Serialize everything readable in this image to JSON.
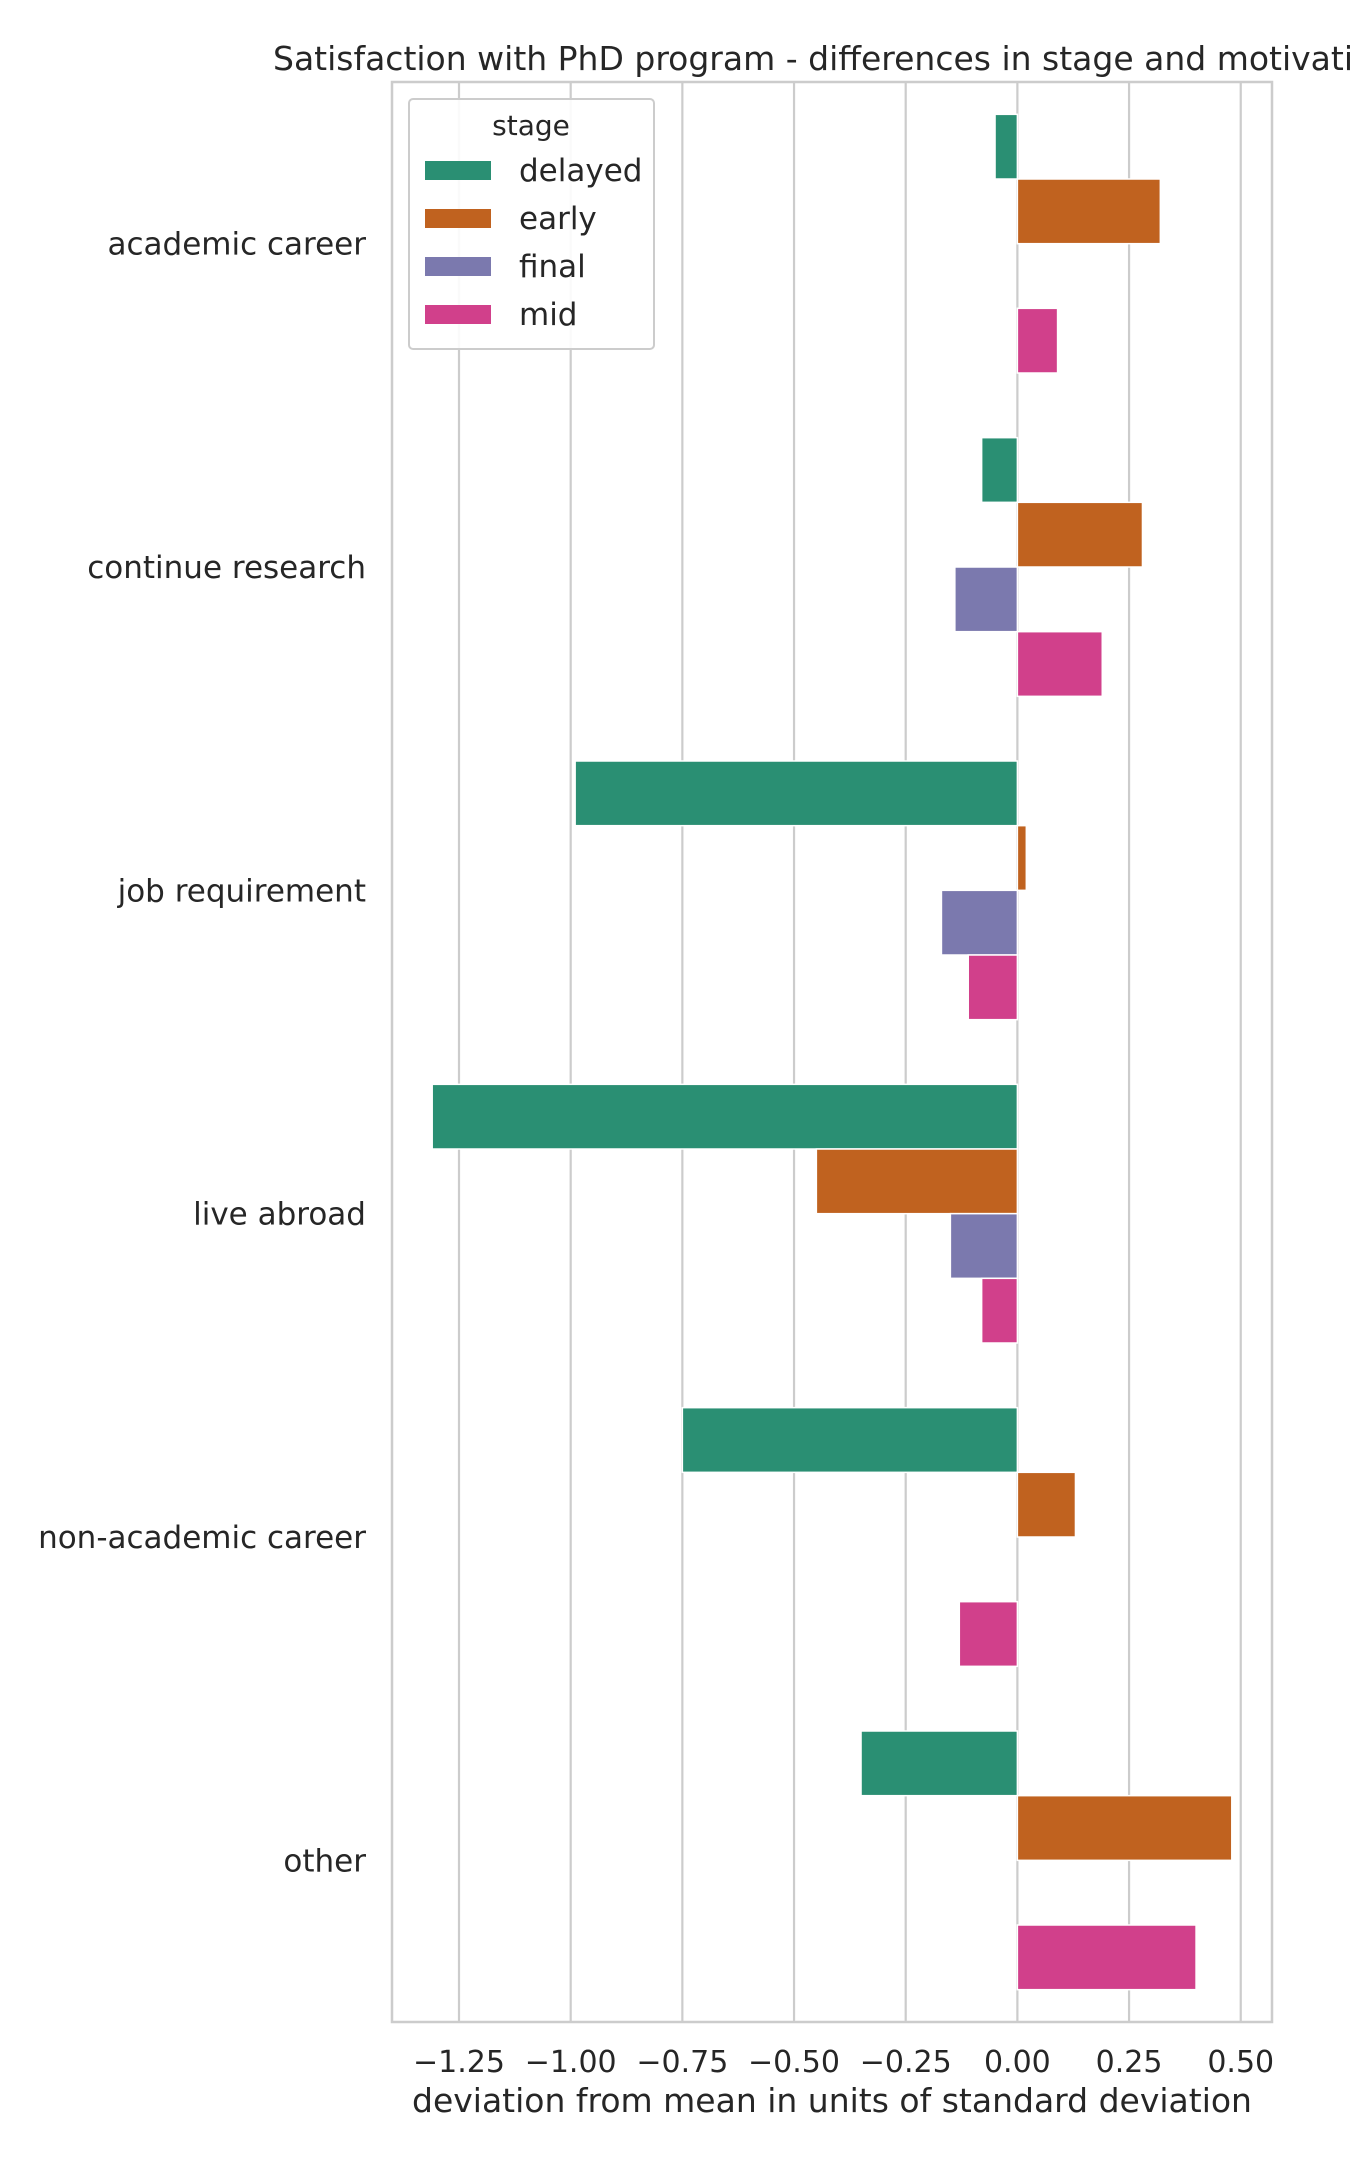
{
  "chart_data": {
    "type": "bar",
    "orientation": "horizontal",
    "title": "Satisfaction with PhD program - differences in stage and motivati",
    "xlabel": "deviation from mean in units of standard deviation",
    "ylabel": "",
    "xlim": [
      -1.4,
      0.57
    ],
    "xticks": [
      -1.25,
      -1.0,
      -0.75,
      -0.5,
      -0.25,
      0.0,
      0.25,
      0.5
    ],
    "xtick_labels": [
      "−1.25",
      "−1.00",
      "−0.75",
      "−0.50",
      "−0.25",
      "0.00",
      "0.25",
      "0.50"
    ],
    "grid": true,
    "categories": [
      "academic career",
      "continue research",
      "job requirement",
      "live abroad",
      "non-academic career",
      "other"
    ],
    "legend": {
      "title": "stage",
      "placement": "top-left"
    },
    "series": [
      {
        "name": "delayed",
        "color": "#2a8f73",
        "values": [
          -0.05,
          -0.08,
          -0.99,
          -1.31,
          -0.75,
          -0.35
        ]
      },
      {
        "name": "early",
        "color": "#c0621f",
        "values": [
          0.32,
          0.28,
          0.02,
          -0.45,
          0.13,
          0.48
        ]
      },
      {
        "name": "final",
        "color": "#7b79ae",
        "values": [
          null,
          -0.14,
          -0.17,
          -0.15,
          null,
          null
        ]
      },
      {
        "name": "mid",
        "color": "#d1408b",
        "values": [
          0.09,
          0.19,
          -0.11,
          -0.08,
          -0.13,
          0.4
        ]
      }
    ]
  }
}
